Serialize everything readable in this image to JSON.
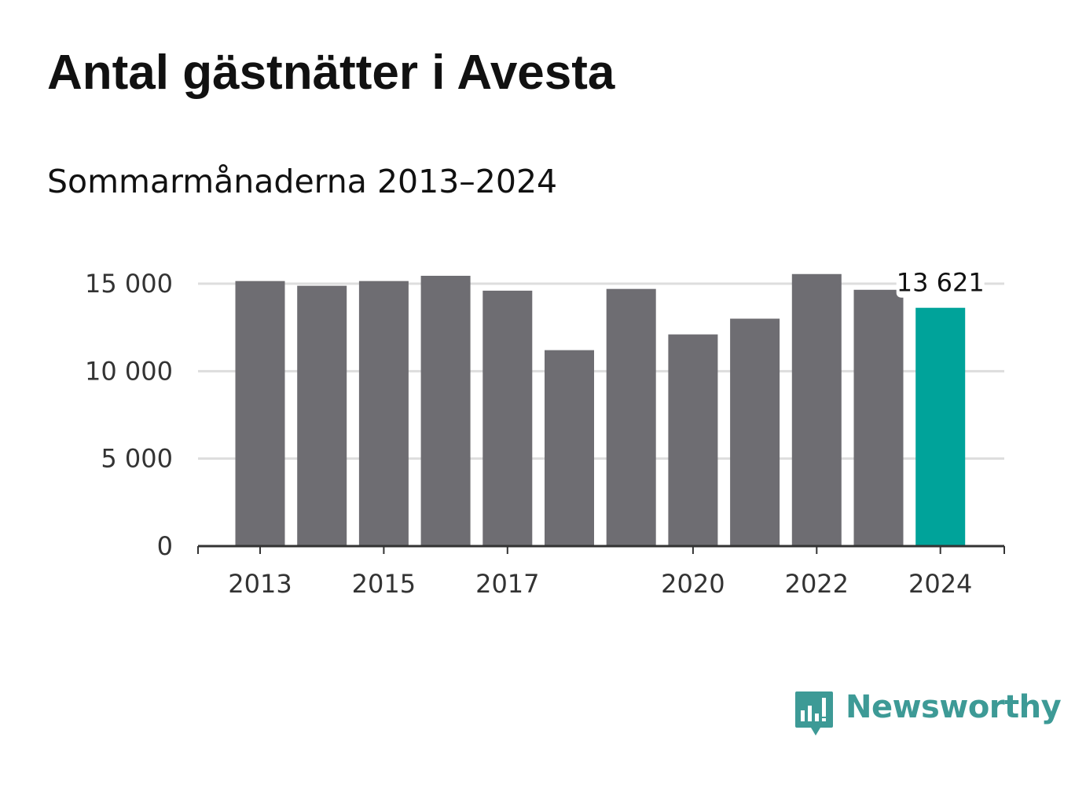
{
  "title": "Antal gästnätter i Avesta",
  "subtitle": "Sommarmånaderna 2013–2024",
  "brand": {
    "name": "Newsworthy",
    "color": "#3d9a96",
    "icon": "bar-chart-speech-bubble-icon"
  },
  "colors": {
    "bar_default": "#6e6d72",
    "bar_highlight": "#00a39a",
    "grid": "#dddddd",
    "axis": "#333333"
  },
  "chart_data": {
    "type": "bar",
    "categories": [
      "2013",
      "2014",
      "2015",
      "2016",
      "2017",
      "2018",
      "2019",
      "2020",
      "2021",
      "2022",
      "2023",
      "2024"
    ],
    "values": [
      15150,
      14880,
      15150,
      15450,
      14600,
      11200,
      14700,
      12100,
      13000,
      15550,
      14650,
      13621
    ],
    "highlight_index": 11,
    "highlight_label": "13 621",
    "x_tick_labels": [
      "2013",
      "2015",
      "2017",
      "2020",
      "2022",
      "2024"
    ],
    "y_ticks": [
      0,
      5000,
      10000,
      15000
    ],
    "y_tick_labels": [
      "0",
      "5 000",
      "10 000",
      "15 000"
    ],
    "ylim": [
      0,
      15000
    ],
    "grid": true,
    "xlabel": "",
    "ylabel": ""
  }
}
